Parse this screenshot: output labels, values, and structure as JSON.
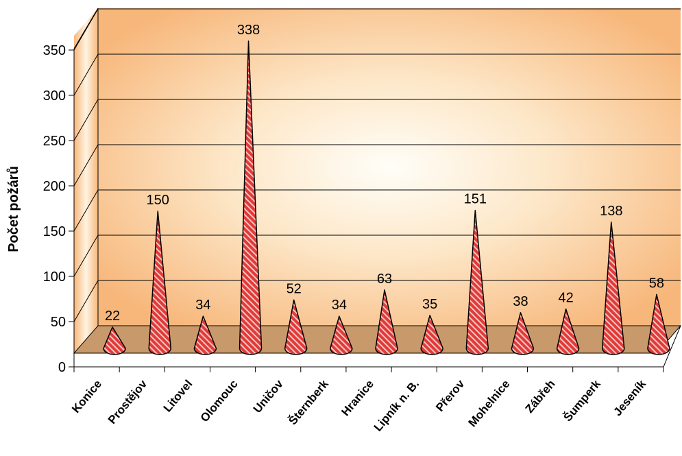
{
  "chart_data": {
    "type": "bar",
    "subtype": "3d-cone",
    "ylabel": "Počet požárů",
    "xlabel": "",
    "ylim": [
      0,
      350
    ],
    "yticks": [
      0,
      50,
      100,
      150,
      200,
      250,
      300,
      350
    ],
    "grid": true,
    "legend": "none",
    "categories": [
      "Konice",
      "Prostějov",
      "Litovel",
      "Olomouc",
      "Uničov",
      "Šternberk",
      "Hranice",
      "Lipník n. B.",
      "Přerov",
      "Mohelnice",
      "Zábřeh",
      "Šumperk",
      "Jeseník"
    ],
    "series": [
      {
        "values": [
          22,
          150,
          34,
          338,
          52,
          34,
          63,
          35,
          151,
          38,
          42,
          138,
          58
        ]
      }
    ],
    "colors": {
      "bar_fill": "#e03a3a",
      "bar_stripe": "#f4c7c0",
      "wall_edge": "#f6b77a",
      "wall_center": "#fffdf5",
      "floor": "#c8996b",
      "grid": "#000000"
    }
  }
}
